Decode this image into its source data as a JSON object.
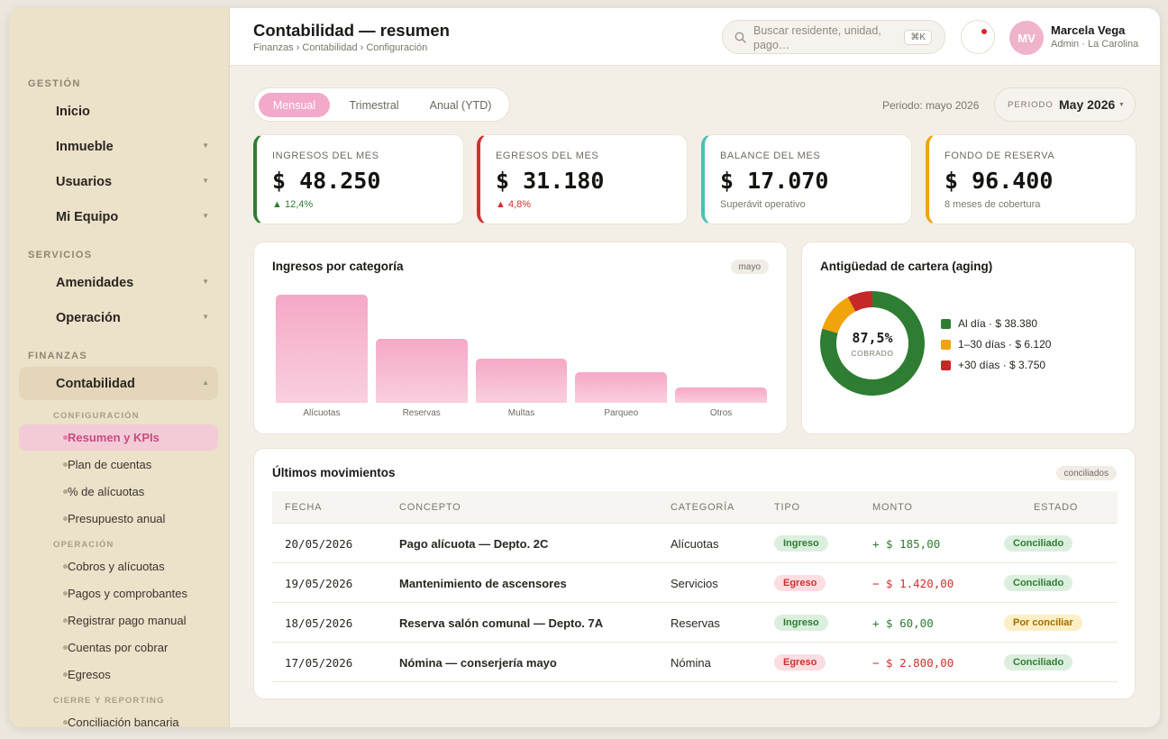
{
  "sidebar": {
    "sections": {
      "gestion": "GESTIÓN",
      "servicios": "SERVICIOS",
      "finanzas": "FINANZAS"
    },
    "items": {
      "inicio": "Inicio",
      "inmueble": "Inmueble",
      "usuarios": "Usuarios",
      "equipo": "Mi Equipo",
      "amenidades": "Amenidades",
      "operacion": "Operación",
      "contabilidad": "Contabilidad"
    },
    "subsections": {
      "configuracion": "CONFIGURACIÓN",
      "operacion": "OPERACIÓN",
      "cierre": "CIERRE Y REPORTING"
    },
    "subitems": {
      "resumen": "Resumen y KPIs",
      "plan": "Plan de cuentas",
      "alicuotas": "% de alícuotas",
      "presupuesto": "Presupuesto anual",
      "cobros": "Cobros y alícuotas",
      "pagos": "Pagos y comprobantes",
      "registrar": "Registrar pago manual",
      "cuentas": "Cuentas por cobrar",
      "egresos": "Egresos",
      "conciliacion": "Conciliación bancaria"
    }
  },
  "header": {
    "title": "Contabilidad — resumen",
    "breadcrumb": "Finanzas › Contabilidad › Configuración",
    "search_placeholder": "Buscar residente, unidad, pago…",
    "search_shortcut": "⌘K",
    "user": {
      "initials": "MV",
      "name": "Marcela Vega",
      "role": "Admin · La Carolina"
    }
  },
  "toolbar": {
    "tabs": [
      "Mensual",
      "Trimestral",
      "Anual (YTD)"
    ],
    "period_text": "Periodo: mayo 2026",
    "period_label": "PERIODO",
    "period_value": "May 2026"
  },
  "kpis": [
    {
      "label": "INGRESOS DEL MES",
      "value": "$ 48.250",
      "sub": "12,4%",
      "trend": "up",
      "color": "#2e7d32"
    },
    {
      "label": "EGRESOS DEL MES",
      "value": "$ 31.180",
      "sub": "4,8%",
      "trend": "up",
      "color": "#d32f2f"
    },
    {
      "label": "BALANCE DEL MES",
      "value": "$ 17.070",
      "sub": "Superávit operativo",
      "color": "#4dbfb3"
    },
    {
      "label": "FONDO DE RESERVA",
      "value": "$ 96.400",
      "sub": "8 meses de cobertura",
      "color": "#f0a30a"
    }
  ],
  "income_chart": {
    "title": "Ingresos por categoría",
    "chip": "mayo"
  },
  "aging_chart": {
    "title": "Antigüedad de cartera (aging)",
    "center_value": "87,5%",
    "center_label": "COBRADO"
  },
  "chart_data": [
    {
      "type": "bar",
      "title": "Ingresos por categoría",
      "categories": [
        "Alícuotas",
        "Reservas",
        "Multas",
        "Parqueo",
        "Otros"
      ],
      "values": [
        100,
        59,
        41,
        28,
        14
      ],
      "ylim": [
        0,
        100
      ],
      "grid": false,
      "color": "#f5a8c7"
    },
    {
      "type": "pie",
      "title": "Antigüedad de cartera (aging)",
      "labels": [
        "Al día · $ 38.380",
        "1–30 días · $ 6.120",
        "+30 días · $ 3.750"
      ],
      "values": [
        38380,
        6120,
        3750
      ],
      "colors": [
        "#2e7d32",
        "#f0a30a",
        "#c62828"
      ],
      "legend": "right"
    }
  ],
  "movements": {
    "title": "Últimos movimientos",
    "chip": "conciliados",
    "columns": [
      "FECHA",
      "CONCEPTO",
      "CATEGORÍA",
      "TIPO",
      "MONTO",
      "ESTADO"
    ],
    "rows": [
      {
        "fecha": "20/05/2026",
        "concepto": "Pago alícuota — Depto. 2C",
        "categoria": "Alícuotas",
        "tipo": "Ingreso",
        "monto": "+ $ 185,00",
        "estado": "Conciliado"
      },
      {
        "fecha": "19/05/2026",
        "concepto": "Mantenimiento de ascensores",
        "categoria": "Servicios",
        "tipo": "Egreso",
        "monto": "− $ 1.420,00",
        "estado": "Conciliado"
      },
      {
        "fecha": "18/05/2026",
        "concepto": "Reserva salón comunal — Depto. 7A",
        "categoria": "Reservas",
        "tipo": "Ingreso",
        "monto": "+ $ 60,00",
        "estado": "Por conciliar"
      },
      {
        "fecha": "17/05/2026",
        "concepto": "Nómina — conserjería mayo",
        "categoria": "Nómina",
        "tipo": "Egreso",
        "monto": "− $ 2.800,00",
        "estado": "Conciliado"
      }
    ]
  },
  "colors": {
    "accent": "#f3a9c9",
    "income": "#2e7d32",
    "expense": "#d32f2f",
    "sidebar_bg": "#ece1c9"
  }
}
